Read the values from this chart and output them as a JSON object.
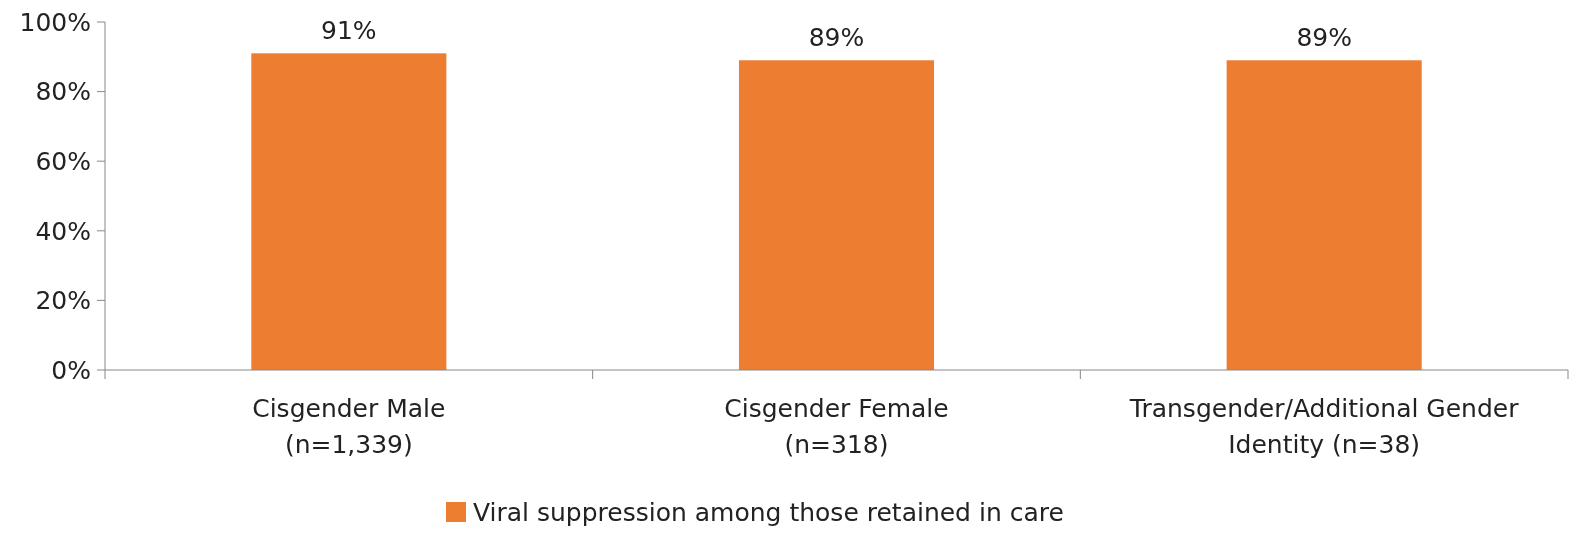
{
  "chart_data": {
    "type": "bar",
    "categories": [
      "Cisgender Male\n(n=1,339)",
      "Cisgender Female\n(n=318)",
      "Transgender/Additional Gender\nIdentity (n=38)"
    ],
    "series": [
      {
        "name": "Viral suppression among those retained in care",
        "color": "#ed7d31",
        "values": [
          91,
          89,
          89
        ],
        "value_labels": [
          "91%",
          "89%",
          "89%"
        ]
      }
    ],
    "ylim": [
      0,
      100
    ],
    "yticks": [
      {
        "value": 0,
        "label": "0%"
      },
      {
        "value": 20,
        "label": "20%"
      },
      {
        "value": 40,
        "label": "40%"
      },
      {
        "value": 60,
        "label": "60%"
      },
      {
        "value": 80,
        "label": "80%"
      },
      {
        "value": 100,
        "label": "100%"
      }
    ],
    "legend": "bottom",
    "grid": false
  }
}
